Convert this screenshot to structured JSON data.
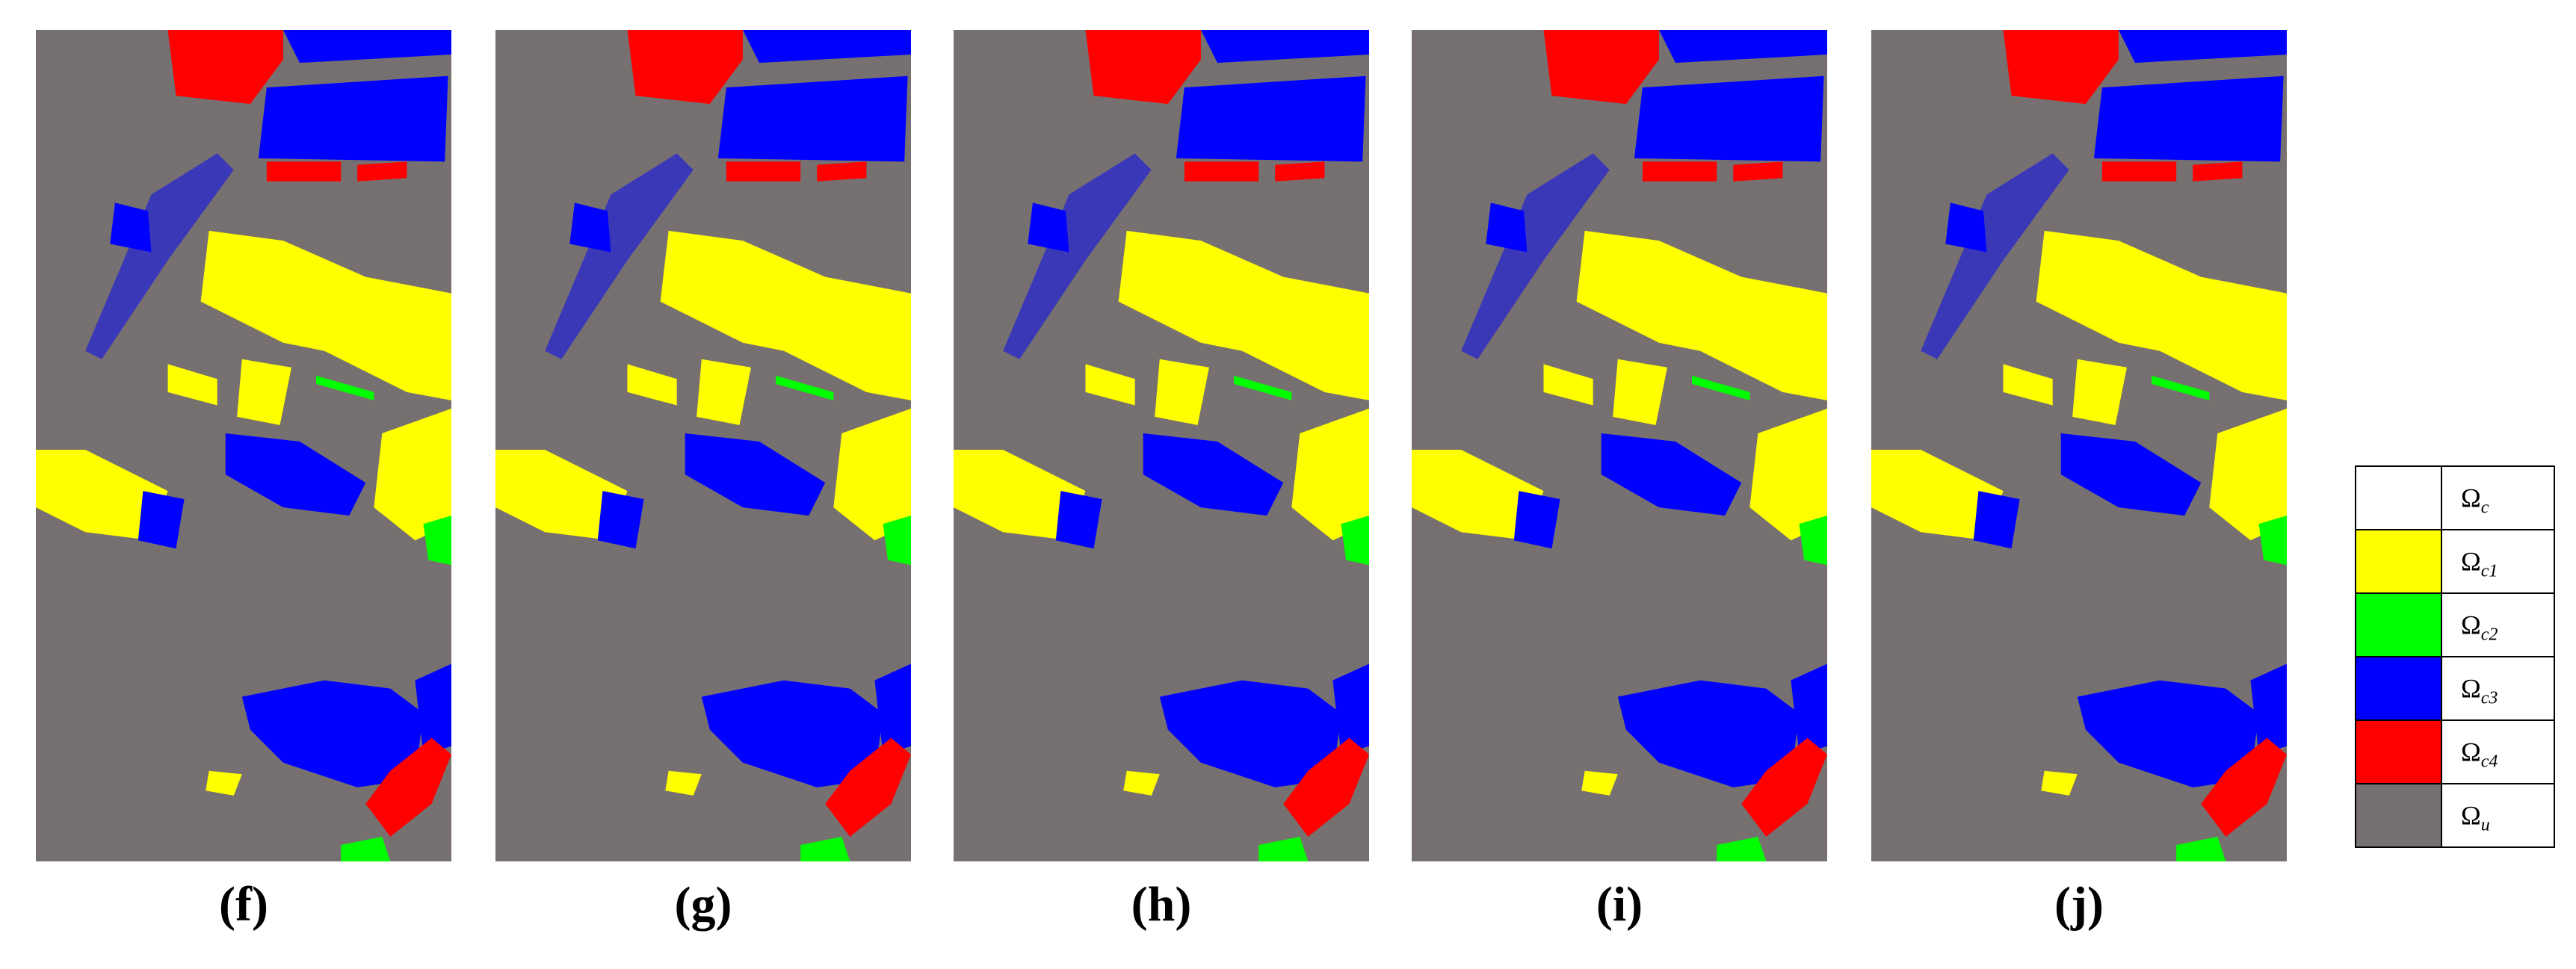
{
  "panels": [
    {
      "label": "(f)"
    },
    {
      "label": "(g)"
    },
    {
      "label": "(h)"
    },
    {
      "label": "(i)"
    },
    {
      "label": "(j)"
    }
  ],
  "legend": [
    {
      "symbol": "Ω",
      "subscript": "c",
      "color": "#ffffff"
    },
    {
      "symbol": "Ω",
      "subscript": "c1",
      "color": "#ffff00"
    },
    {
      "symbol": "Ω",
      "subscript": "c2",
      "color": "#00ff00"
    },
    {
      "symbol": "Ω",
      "subscript": "c3",
      "color": "#0000ff"
    },
    {
      "symbol": "Ω",
      "subscript": "c4",
      "color": "#ff0000"
    },
    {
      "symbol": "Ω",
      "subscript": "u",
      "color": "#777070"
    }
  ]
}
